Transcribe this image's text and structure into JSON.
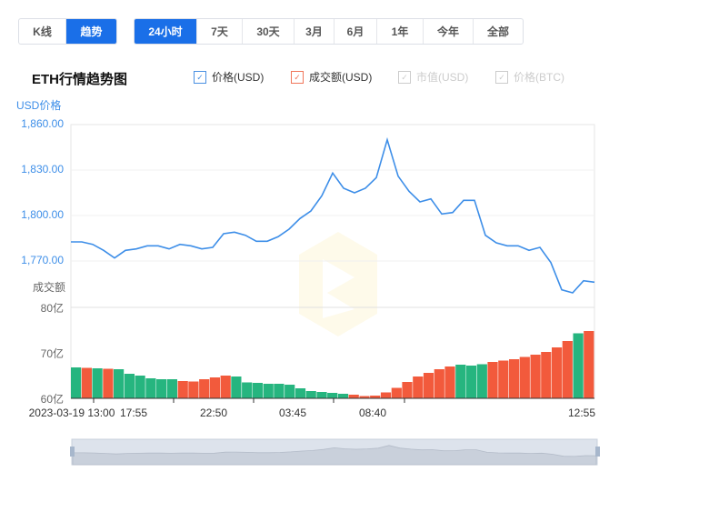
{
  "view_toggle": [
    {
      "label": "K线",
      "active": false
    },
    {
      "label": "趋势",
      "active": true
    }
  ],
  "ranges": [
    {
      "label": "24小时",
      "active": true
    },
    {
      "label": "7天"
    },
    {
      "label": "30天"
    },
    {
      "label": "3月"
    },
    {
      "label": "6月"
    },
    {
      "label": "1年"
    },
    {
      "label": "今年"
    },
    {
      "label": "全部"
    }
  ],
  "chart_title": "ETH行情趋势图",
  "legend": [
    {
      "label": "价格(USD)",
      "checked": true,
      "color": "#4a90e2"
    },
    {
      "label": "成交额(USD)",
      "checked": true,
      "color": "#f0765a"
    },
    {
      "label": "市值(USD)",
      "checked": false,
      "color": "#cccccc"
    },
    {
      "label": "价格(BTC)",
      "checked": false,
      "color": "#cccccc"
    }
  ],
  "colors": {
    "price": "#3d8ee8",
    "up": "#f25a3c",
    "down": "#26b57f",
    "accent": "#1a6fe8"
  },
  "chart_data": {
    "type": "line+bar",
    "x_tick_labels": [
      "2023-03-19 13:00",
      "17:55",
      "22:50",
      "03:45",
      "08:40",
      "12:55"
    ],
    "price_axis": {
      "label": "USD价格",
      "ticks": [
        "1,860.00",
        "1,830.00",
        "1,800.00",
        "1,770.00"
      ],
      "ylim": [
        1740,
        1860
      ]
    },
    "volume_axis": {
      "label": "成交额",
      "ticks": [
        "80亿",
        "70亿",
        "60亿"
      ],
      "ylim": [
        60,
        80
      ],
      "unit": "亿"
    },
    "price": [
      1782.6,
      1782.6,
      1781,
      1777,
      1772,
      1777,
      1778,
      1780,
      1780,
      1778,
      1781,
      1780,
      1778,
      1779,
      1788,
      1789,
      1787,
      1783,
      1783,
      1786,
      1791,
      1798,
      1803,
      1813,
      1828,
      1818,
      1815,
      1818,
      1825,
      1850,
      1826,
      1816,
      1809,
      1811,
      1801,
      1802,
      1810,
      1810,
      1787,
      1782,
      1780,
      1780,
      1777,
      1779,
      1769,
      1751,
      1749,
      1757,
      1756
    ],
    "volume": [
      66.8,
      66.7,
      66.6,
      66.5,
      66.4,
      65.4,
      65.0,
      64.4,
      64.2,
      64.2,
      63.8,
      63.7,
      64.2,
      64.6,
      65.0,
      64.8,
      63.5,
      63.4,
      63.2,
      63.2,
      63.0,
      62.2,
      61.6,
      61.4,
      61.2,
      61.0,
      60.8,
      60.5,
      60.6,
      61.3,
      62.3,
      63.6,
      64.8,
      65.6,
      66.4,
      67.0,
      67.4,
      67.2,
      67.5,
      68.0,
      68.3,
      68.6,
      69.1,
      69.6,
      70.2,
      71.2,
      72.6,
      74.3,
      74.8
    ],
    "volume_up": [
      false,
      true,
      false,
      true,
      false,
      false,
      false,
      false,
      false,
      false,
      true,
      true,
      true,
      true,
      true,
      false,
      false,
      false,
      false,
      false,
      false,
      false,
      false,
      false,
      false,
      false,
      true,
      true,
      true,
      true,
      true,
      true,
      true,
      true,
      true,
      true,
      false,
      false,
      false,
      true,
      true,
      true,
      true,
      true,
      true,
      true,
      true,
      false,
      true
    ]
  }
}
